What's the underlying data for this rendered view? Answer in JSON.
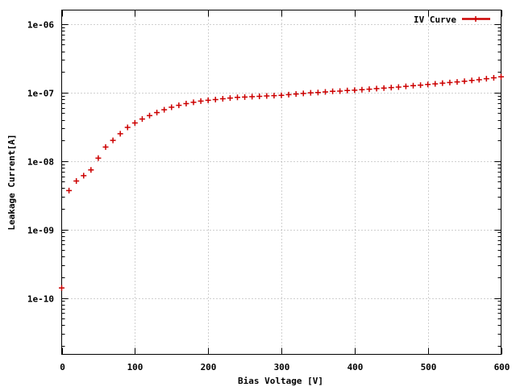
{
  "chart_data": {
    "type": "scatter",
    "title": "",
    "xlabel": "Bias Voltage [V]",
    "ylabel": "Leakage Current[A]",
    "xlim": [
      0,
      600
    ],
    "ylim": [
      1.5e-11,
      1.6e-06
    ],
    "yscale": "log",
    "grid": true,
    "legend_position": "top-right",
    "x_ticks": [
      0,
      100,
      200,
      300,
      400,
      500,
      600
    ],
    "x_tick_labels": [
      "0",
      "100",
      "200",
      "300",
      "400",
      "500",
      "600"
    ],
    "y_ticks": [
      1e-10,
      1e-09,
      1e-08,
      1e-07,
      1e-06
    ],
    "y_tick_labels": [
      "1e-10",
      "1e-09",
      "1e-08",
      "1e-07",
      "1e-06"
    ],
    "series": [
      {
        "name": "IV Curve",
        "color": "#cc0000",
        "marker": "plus",
        "x": [
          0,
          10,
          20,
          30,
          40,
          50,
          60,
          70,
          80,
          90,
          100,
          110,
          120,
          130,
          140,
          150,
          160,
          170,
          180,
          190,
          200,
          210,
          220,
          230,
          240,
          250,
          260,
          270,
          280,
          290,
          300,
          310,
          320,
          330,
          340,
          350,
          360,
          370,
          380,
          390,
          400,
          410,
          420,
          430,
          440,
          450,
          460,
          470,
          480,
          490,
          500,
          510,
          520,
          530,
          540,
          550,
          560,
          570,
          580,
          590,
          600
        ],
        "y": [
          1.4e-10,
          3.7e-09,
          5.1e-09,
          6.1e-09,
          7.4e-09,
          1.1e-08,
          1.6e-08,
          2e-08,
          2.5e-08,
          3.1e-08,
          3.6e-08,
          4.1e-08,
          4.6e-08,
          5.1e-08,
          5.6e-08,
          6.1e-08,
          6.5e-08,
          6.9e-08,
          7.2e-08,
          7.5e-08,
          7.7e-08,
          7.9e-08,
          8.1e-08,
          8.3e-08,
          8.5e-08,
          8.6e-08,
          8.7e-08,
          8.8e-08,
          8.9e-08,
          9e-08,
          9.1e-08,
          9.3e-08,
          9.5e-08,
          9.7e-08,
          9.9e-08,
          1e-07,
          1.02e-07,
          1.04e-07,
          1.05e-07,
          1.07e-07,
          1.08e-07,
          1.1e-07,
          1.12e-07,
          1.14e-07,
          1.16e-07,
          1.18e-07,
          1.2e-07,
          1.23e-07,
          1.26e-07,
          1.28e-07,
          1.31e-07,
          1.34e-07,
          1.37e-07,
          1.4e-07,
          1.43e-07,
          1.46e-07,
          1.5e-07,
          1.54e-07,
          1.59e-07,
          1.64e-07,
          1.7e-07
        ]
      }
    ]
  }
}
